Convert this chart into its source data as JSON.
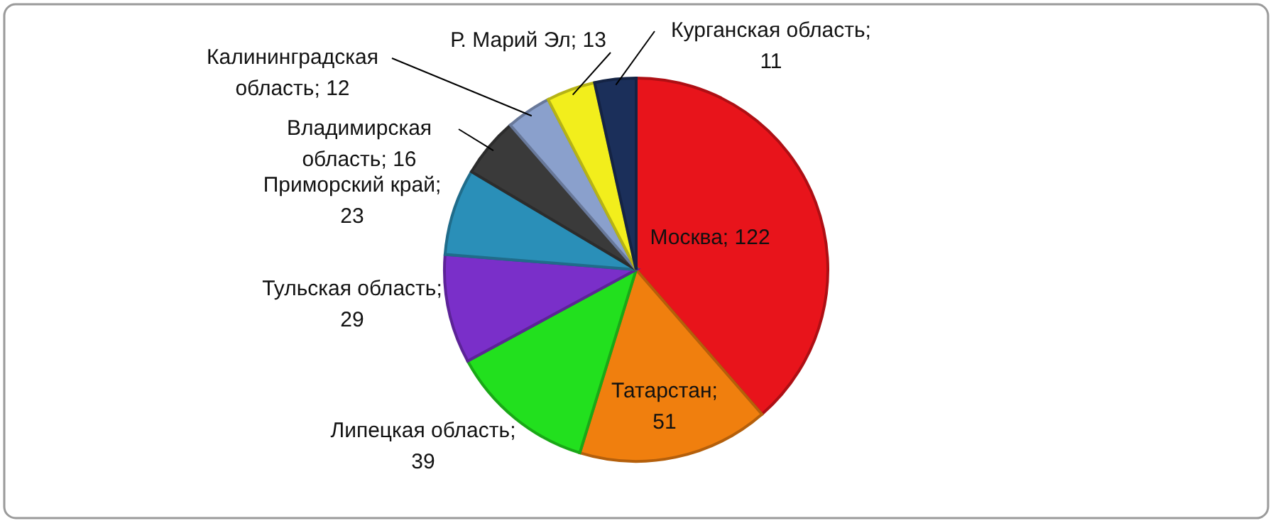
{
  "chart_data": {
    "type": "pie",
    "categories": [
      "Москва",
      "Татарстан",
      "Липецкая область",
      "Тульская область",
      "Приморский край",
      "Владимирская область",
      "Калининградская область",
      "Р. Марий Эл",
      "Курганская область"
    ],
    "values": [
      122,
      51,
      39,
      29,
      23,
      16,
      12,
      13,
      11
    ],
    "colors": [
      "#e8141b",
      "#f07f0e",
      "#22e01e",
      "#7a2fc9",
      "#2a8fb8",
      "#3a3a3a",
      "#8aa0cc",
      "#f2ee1c",
      "#1b2f5a"
    ],
    "value_labels": [
      "; 122",
      "; 51",
      "; 39",
      "; 29",
      "; 23",
      "; 16",
      "; 12",
      "; 13",
      "; 11"
    ]
  }
}
